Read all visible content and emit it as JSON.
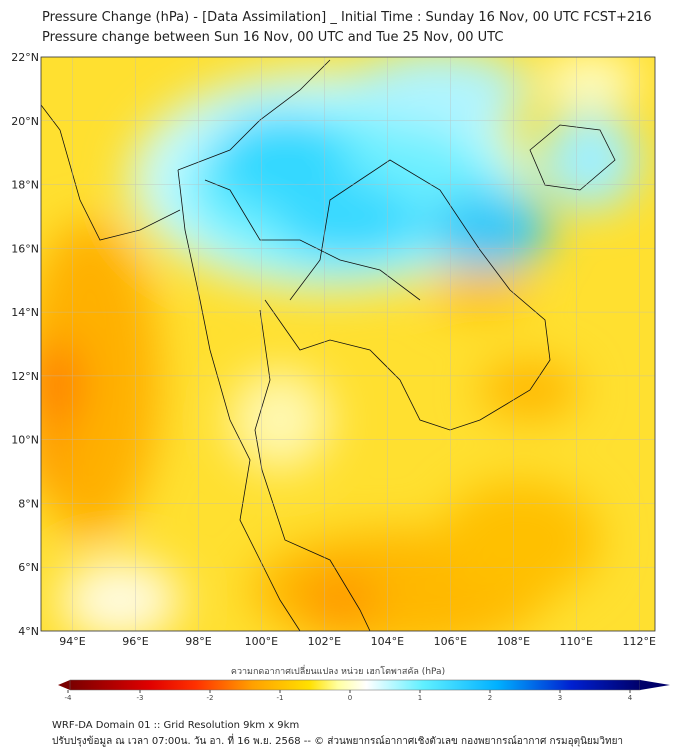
{
  "title": {
    "line1": "Pressure Change (hPa) - [Data Assimilation] _ Initial Time : Sunday 16 Nov, 00 UTC FCST+216",
    "line2": "Pressure change between Sun 16 Nov, 00 UTC and Tue 25 Nov, 00 UTC"
  },
  "map": {
    "lon_ticks": [
      "94°E",
      "96°E",
      "98°E",
      "100°E",
      "102°E",
      "104°E",
      "106°E",
      "108°E",
      "110°E",
      "112°E"
    ],
    "lat_ticks": [
      "22°N",
      "20°N",
      "18°N",
      "16°N",
      "14°N",
      "12°N",
      "10°N",
      "8°N",
      "6°N",
      "4°N"
    ],
    "lon_range": [
      93,
      112.5
    ],
    "lat_range": [
      4,
      22
    ]
  },
  "colorbar": {
    "label": "ความกดอากาศเปลี่ยนแปลง หน่วย เฮกโตพาสคัล (hPa)",
    "ticks": [
      "-4",
      "-3",
      "-2",
      "-1",
      "0",
      "1",
      "2",
      "3",
      "4"
    ],
    "range": [
      -4,
      4
    ],
    "colors": [
      "#7a0000",
      "#ff0000",
      "#ffa000",
      "#ffe000",
      "#ffffff",
      "#60f0ff",
      "#00b0ff",
      "#0020d0",
      "#00006a"
    ]
  },
  "footer": {
    "line1": "WRF-DA Domain 01 :: Grid Resolution 9km x 9km",
    "line2": "ปรับปรุงข้อมูล ณ เวลา 07:00น. วัน อา. ที่ 16 พ.ย. 2568 -- © ส่วนพยากรณ์อากาศเชิงตัวเลข กองพยากรณ์อากาศ กรมอุตุนิยมวิทยา"
  }
}
